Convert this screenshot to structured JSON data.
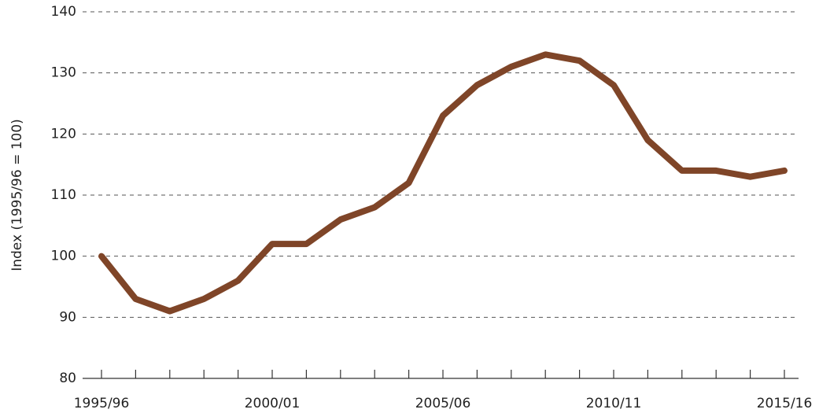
{
  "chart_data": {
    "type": "line",
    "y_label": "Index (1995/96 = 100)",
    "categories": [
      "1995/96",
      null,
      null,
      null,
      null,
      "2000/01",
      null,
      null,
      null,
      null,
      "2005/06",
      null,
      null,
      null,
      null,
      "2010/11",
      null,
      null,
      null,
      null,
      "2015/16"
    ],
    "series": [
      {
        "name": "Index",
        "color": "#7f4528",
        "values": [
          100,
          93,
          91,
          93,
          96,
          102,
          102,
          106,
          108,
          112,
          123,
          128,
          131,
          133,
          132,
          128,
          119,
          114,
          114,
          113,
          114
        ]
      }
    ],
    "ylim": [
      80,
      140
    ],
    "yticks": [
      80,
      90,
      100,
      110,
      120,
      130,
      140
    ],
    "grid": true
  }
}
